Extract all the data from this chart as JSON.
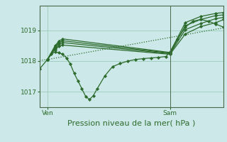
{
  "bg_color": "#cce8e8",
  "grid_color": "#99ccbb",
  "line_color": "#2d6b2d",
  "marker_color": "#2d6b2d",
  "xlabel": "Pression niveau de la mer( hPa )",
  "xlabel_fontsize": 8,
  "tick_fontsize": 6.5,
  "ylim": [
    1016.5,
    1019.8
  ],
  "yticks": [
    1017,
    1018,
    1019
  ],
  "ven_x": 2,
  "sam_x": 34,
  "xlim": [
    0,
    48
  ],
  "series": [
    {
      "x": [
        0,
        2,
        3,
        4,
        5,
        6,
        7,
        8,
        9,
        10,
        11,
        12,
        13,
        14,
        15,
        17,
        19,
        21,
        23,
        25,
        27,
        29,
        31,
        33,
        34,
        36,
        38,
        40,
        42,
        44,
        46,
        48
      ],
      "y": [
        1017.75,
        1018.05,
        1018.22,
        1018.3,
        1018.27,
        1018.22,
        1018.1,
        1017.9,
        1017.6,
        1017.35,
        1017.1,
        1016.85,
        1016.75,
        1016.88,
        1017.1,
        1017.52,
        1017.82,
        1017.92,
        1018.0,
        1018.05,
        1018.08,
        1018.1,
        1018.12,
        1018.15,
        1018.3,
        1018.72,
        1019.1,
        1019.3,
        1019.35,
        1019.3,
        1019.2,
        1019.1
      ],
      "dotted": false,
      "markers": true
    },
    {
      "x": [
        2,
        4,
        5,
        6,
        34,
        38,
        42,
        46,
        48
      ],
      "y": [
        1018.05,
        1018.38,
        1018.48,
        1018.52,
        1018.22,
        1018.88,
        1019.12,
        1019.25,
        1019.35
      ],
      "dotted": false,
      "markers": true
    },
    {
      "x": [
        2,
        4,
        5,
        6,
        34,
        38,
        42,
        46,
        48
      ],
      "y": [
        1018.05,
        1018.42,
        1018.55,
        1018.6,
        1018.24,
        1019.02,
        1019.22,
        1019.38,
        1019.42
      ],
      "dotted": false,
      "markers": true
    },
    {
      "x": [
        2,
        4,
        5,
        6,
        34,
        38,
        42,
        46,
        48
      ],
      "y": [
        1018.05,
        1018.46,
        1018.6,
        1018.66,
        1018.26,
        1019.15,
        1019.35,
        1019.48,
        1019.5
      ],
      "dotted": false,
      "markers": true
    },
    {
      "x": [
        2,
        4,
        5,
        6,
        34,
        38,
        42,
        46,
        48
      ],
      "y": [
        1018.05,
        1018.5,
        1018.65,
        1018.72,
        1018.28,
        1019.25,
        1019.45,
        1019.55,
        1019.58
      ],
      "dotted": false,
      "markers": true
    },
    {
      "x": [
        0,
        2,
        48
      ],
      "y": [
        1018.02,
        1018.05,
        1019.08
      ],
      "dotted": true,
      "markers": false
    }
  ]
}
